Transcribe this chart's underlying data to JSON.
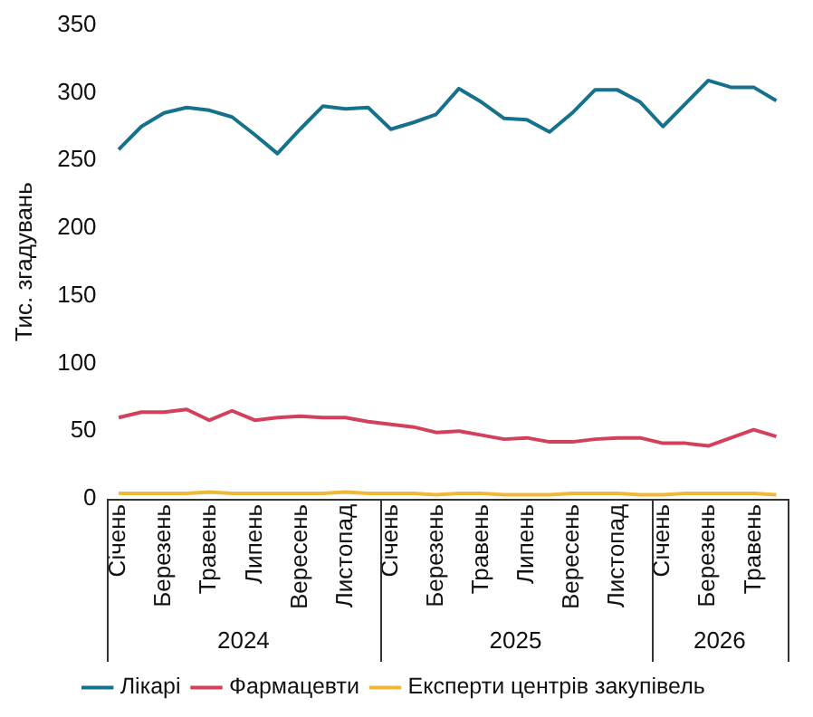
{
  "chart_data": {
    "type": "line",
    "ylabel": "Тис. згадувань",
    "categories": [
      "Січень",
      null,
      "Березень",
      null,
      "Травень",
      null,
      "Липень",
      null,
      "Вересень",
      null,
      "Листопад",
      null,
      "Січень",
      null,
      "Березень",
      null,
      "Травень",
      null,
      "Липень",
      null,
      "Вересень",
      null,
      "Листопад",
      null,
      "Січень",
      null,
      "Березень",
      null,
      "Травень",
      null
    ],
    "annotations": [
      "2024",
      "2025",
      "2026"
    ],
    "series": [
      {
        "name": "Лікарі",
        "color": "#16728c",
        "values": [
          258,
          275,
          285,
          289,
          287,
          282,
          269,
          255,
          273,
          290,
          288,
          289,
          273,
          278,
          284,
          303,
          293,
          281,
          280,
          271,
          285,
          302,
          302,
          293,
          275,
          292,
          309,
          304,
          304,
          294
        ]
      },
      {
        "name": "Фармацевти",
        "color": "#d3405c",
        "values": [
          60,
          64,
          64,
          66,
          58,
          65,
          58,
          60,
          61,
          60,
          60,
          57,
          55,
          53,
          49,
          50,
          47,
          44,
          45,
          42,
          42,
          44,
          45,
          45,
          41,
          41,
          39,
          45,
          51,
          46
        ]
      },
      {
        "name": "Експерти центрів закупівель",
        "color": "#f0b83a",
        "values": [
          4,
          4,
          4,
          4,
          5,
          4,
          4,
          4,
          4,
          4,
          5,
          4,
          4,
          4,
          3,
          4,
          4,
          3,
          3,
          3,
          4,
          4,
          4,
          3,
          3,
          4,
          4,
          4,
          4,
          3
        ]
      }
    ],
    "ylim": [
      0,
      350
    ],
    "yticks": [
      0,
      50,
      100,
      150,
      200,
      250,
      300,
      350
    ],
    "legend": "bottom",
    "marker": "none",
    "line_style": "solid"
  }
}
